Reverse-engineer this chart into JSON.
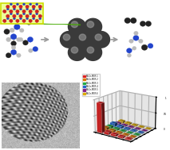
{
  "bg_color": "#ffffff",
  "arrow_color": "#999999",
  "mol_colors": {
    "N_blue": "#2244cc",
    "H_grey": "#bbbbbb",
    "C_black": "#222222",
    "O_dark": "#333333",
    "white_atom": "#eeeeee"
  },
  "catalyst_dark": "#3a3a3a",
  "catalyst_mid": "#666666",
  "catalyst_light": "#999999",
  "zoom_box_bg": "#eeff99",
  "zoom_box_edge": "#ccdd00",
  "green_tri": "#66dd00",
  "crystal_red": "#cc2222",
  "crystal_blue": "#2244bb",
  "legend_colors": [
    "#dd2222",
    "#dd7700",
    "#22aa44",
    "#2266cc",
    "#882288",
    "#ddaa00"
  ],
  "legend_labels": [
    "MnCe-MOF-1",
    "MnCe-MOF-2",
    "MnCe-MOF-3",
    "MnCe-MOF-4",
    "MnCe-MOF-5",
    "MnCe-MOF-6"
  ],
  "bar_heights_3d": [
    [
      0.92,
      0.08,
      0.06,
      0.04,
      0.03
    ],
    [
      0.1,
      0.06,
      0.04,
      0.03,
      0.02
    ],
    [
      0.08,
      0.05,
      0.03,
      0.02,
      0.02
    ],
    [
      0.12,
      0.07,
      0.04,
      0.03,
      0.02
    ],
    [
      0.06,
      0.04,
      0.03,
      0.02,
      0.01
    ],
    [
      0.07,
      0.05,
      0.03,
      0.02,
      0.01
    ]
  ],
  "bar_colors_3d": [
    "#dd2222",
    "#dd7700",
    "#22aa44",
    "#2266cc",
    "#882288",
    "#ddaa00"
  ],
  "tem_seed": 12
}
